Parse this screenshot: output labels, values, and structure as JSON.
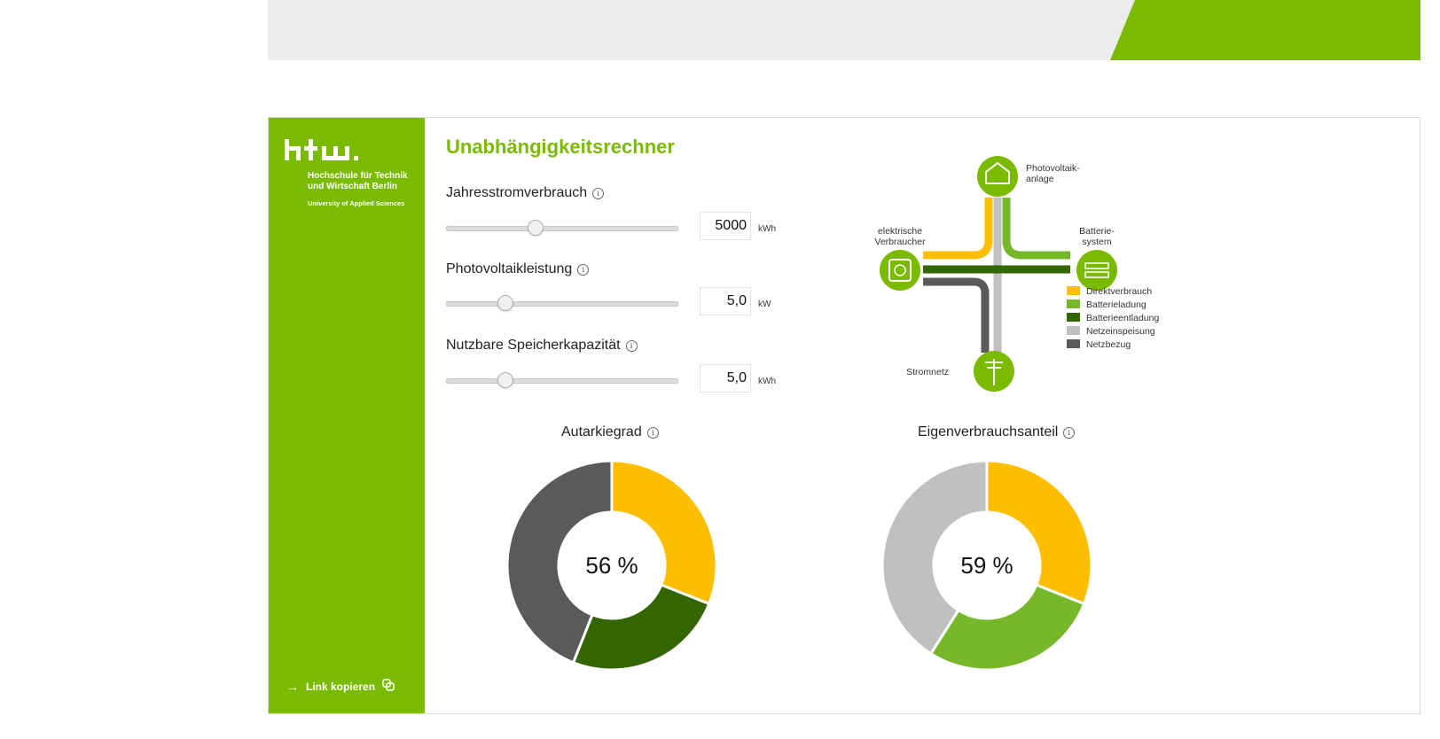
{
  "sidebar": {
    "logo_text": "htw.",
    "uni_name": "Hochschule für Technik und Wirtschaft Berlin",
    "uni_subtitle": "University of Applied Sciences",
    "copy_link_label": "Link kopieren"
  },
  "title": "Unabhängigkeitsrechner",
  "inputs": [
    {
      "label": "Jahresstromverbrauch",
      "value": "5000",
      "unit": "kWh",
      "slider_fraction": 0.38
    },
    {
      "label": "Photovoltaikleistung",
      "value": "5,0",
      "unit": "kW",
      "slider_fraction": 0.25
    },
    {
      "label": "Nutzbare Speicherkapazität",
      "value": "5,0",
      "unit": "kWh",
      "slider_fraction": 0.25
    }
  ],
  "diagram": {
    "nodes": {
      "pv": "Photovoltaik-\nanlage",
      "consumer": "elektrische\nVerbraucher",
      "battery": "Batterie-\nsystem",
      "grid": "Stromnetz"
    },
    "legend": [
      {
        "label": "Direktverbrauch",
        "color": "#ffbf00"
      },
      {
        "label": "Batterieladung",
        "color": "#76b82a"
      },
      {
        "label": "Batterieentladung",
        "color": "#336600"
      },
      {
        "label": "Netzeinspeisung",
        "color": "#c0c0c0"
      },
      {
        "label": "Netzbezug",
        "color": "#5a5a5a"
      }
    ]
  },
  "chart_data": [
    {
      "type": "pie",
      "title": "Autarkiegrad",
      "center_label": "56 %",
      "slices": [
        {
          "label": "Direktverbrauch",
          "value": 31,
          "color": "#ffbf00"
        },
        {
          "label": "Batterieentladung",
          "value": 25,
          "color": "#336600"
        },
        {
          "label": "Netzbezug",
          "value": 44,
          "color": "#5a5a5a"
        }
      ]
    },
    {
      "type": "pie",
      "title": "Eigenverbrauchsanteil",
      "center_label": "59 %",
      "slices": [
        {
          "label": "Direktverbrauch",
          "value": 31,
          "color": "#ffbf00"
        },
        {
          "label": "Batterieladung",
          "value": 28,
          "color": "#76b82a"
        },
        {
          "label": "Netzeinspeisung",
          "value": 41,
          "color": "#c0c0c0"
        }
      ]
    }
  ]
}
